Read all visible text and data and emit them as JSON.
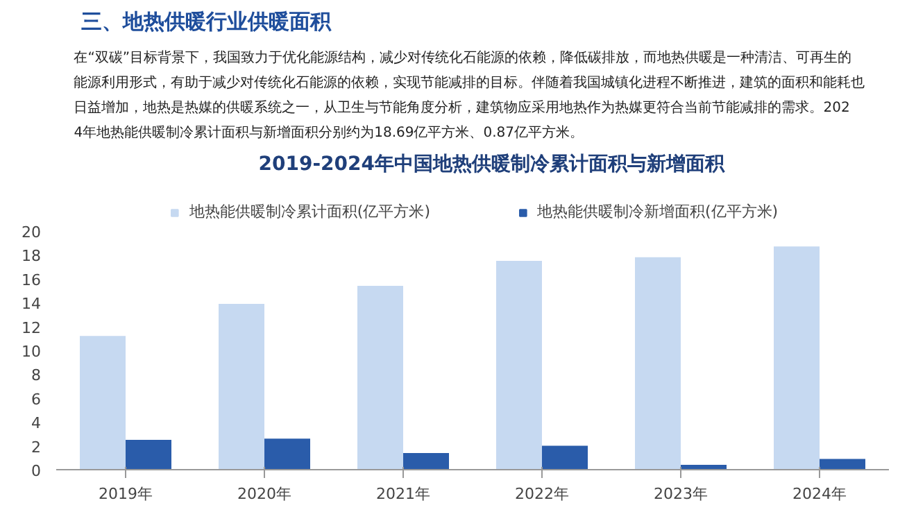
{
  "chart_data": {
    "type": "bar",
    "title": "2019-2024年中国地热供暖制冷累计面积与新增面积",
    "subtitle": "在“双碳”目标背景下，我国致力于优化能源结构，减少对传统化石能源的依赖，降低碳排放，而地热供暖是一种清洁、可再生的能源利用形式，有助于减少对传统化石能源的依赖，实现节能减排的目标。伴随着我国城镇化进程不断推进，建筑的面积和能耗也日益增加，地热是热媒的供暖系统之一，从卫生与节能角度分析，建筑物应采用地热作为热媒更符合当前节能减排的需求。2024年地热能供暖制冷累计面积与新增面积分别约为18.69亿平方米、0.87亿平方米。",
    "annotations": [
      "三、地热供暖行业供暖面积"
    ],
    "categories": [
      "2019年",
      "2020年",
      "2021年",
      "2022年",
      "2023年",
      "2024年"
    ],
    "series": [
      {
        "name": "地热能供暖制冷累计面积(亿平方米)",
        "color": "#c6d9f1",
        "values": [
          11.2,
          13.9,
          15.4,
          17.5,
          17.8,
          18.7
        ]
      },
      {
        "name": "地热能供暖制冷新增面积(亿平方米)",
        "color": "#2a5caa",
        "values": [
          2.5,
          2.6,
          1.4,
          2.0,
          0.4,
          0.9
        ]
      }
    ],
    "ylim": [
      0,
      20
    ],
    "yticks": [
      0,
      2,
      4,
      6,
      8,
      10,
      12,
      14,
      16,
      18,
      20
    ],
    "grid": false,
    "legend": "top"
  }
}
